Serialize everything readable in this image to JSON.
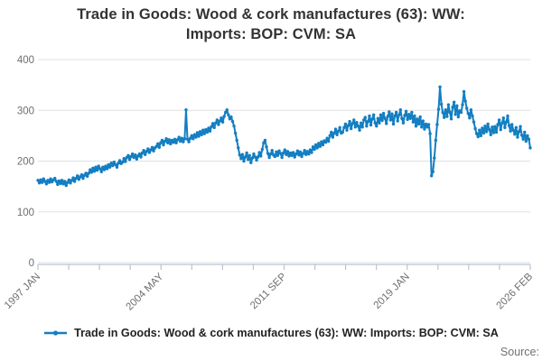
{
  "title": {
    "line1": "Trade in Goods: Wood & cork manufactures (63): WW:",
    "line2": "Imports: BOP: CVM: SA",
    "full": "Trade in Goods: Wood & cork manufactures (63): WW: Imports: BOP: CVM: SA"
  },
  "legend": {
    "series_label": "Trade in Goods: Wood & cork manufactures (63): WW: Imports: BOP: CVM: SA",
    "marker": "line-with-dot-marker"
  },
  "source_label": "Source:",
  "colors": {
    "line": "#137ec2",
    "grid": "#e0e0e0",
    "axis": "#b9c3d4",
    "tick_label": "#6e6e6e",
    "title_text": "#333333",
    "legend_text": "#222222",
    "source_text": "#707070"
  },
  "axes": {
    "y": {
      "ticks": [
        0,
        100,
        200,
        300,
        400
      ],
      "max": 400,
      "grid": true
    },
    "x": {
      "tick_count": 17,
      "labeled_every": 4,
      "labels": [
        "1997 JAN",
        "2004 MAY",
        "2011 SEP",
        "2019 JAN",
        "2026 FEB"
      ],
      "label_rotation_deg": -45
    }
  },
  "chart_data": {
    "type": "line",
    "title": "Trade in Goods: Wood & cork manufactures (63): WW: Imports: BOP: CVM: SA",
    "xlabel": "",
    "ylabel": "",
    "ylim": [
      0,
      400
    ],
    "x_start": "1997-01",
    "x_end": "2026-02",
    "frequency": "monthly",
    "x_tick_labels": [
      "1997 JAN",
      "2004 MAY",
      "2011 SEP",
      "2019 JAN",
      "2026 FEB"
    ],
    "legend_position": "bottom",
    "grid": "horizontal-only",
    "marker": "point",
    "values_by_year": [
      {
        "year": 1997,
        "values": [
          162,
          157,
          163,
          158,
          165,
          160,
          155,
          162,
          158,
          165,
          159,
          163
        ]
      },
      {
        "year": 1998,
        "values": [
          166,
          160,
          154,
          161,
          156,
          162,
          155,
          160,
          152,
          158,
          163,
          157
        ]
      },
      {
        "year": 1999,
        "values": [
          162,
          167,
          160,
          166,
          171,
          164,
          169,
          173,
          166,
          172,
          176,
          170
        ]
      },
      {
        "year": 2000,
        "values": [
          176,
          183,
          178,
          186,
          180,
          188,
          182,
          190,
          185,
          179,
          188,
          183
        ]
      },
      {
        "year": 2001,
        "values": [
          190,
          185,
          193,
          188,
          196,
          191,
          198,
          193,
          188,
          196,
          201,
          195
        ]
      },
      {
        "year": 2002,
        "values": [
          198,
          205,
          199,
          207,
          211,
          203,
          209,
          214,
          207,
          212,
          204,
          210
        ]
      },
      {
        "year": 2003,
        "values": [
          214,
          208,
          216,
          221,
          213,
          219,
          224,
          217,
          222,
          227,
          220,
          226
        ]
      },
      {
        "year": 2004,
        "values": [
          229,
          234,
          227,
          236,
          241,
          232,
          239,
          244,
          236,
          242,
          234,
          241
        ]
      },
      {
        "year": 2005,
        "values": [
          237,
          243,
          236,
          242,
          247,
          239,
          245,
          238,
          244,
          301,
          243,
          238
        ]
      },
      {
        "year": 2006,
        "values": [
          245,
          250,
          244,
          252,
          247,
          256,
          249,
          258,
          252,
          261,
          254,
          262
        ]
      },
      {
        "year": 2007,
        "values": [
          257,
          265,
          259,
          268,
          274,
          266,
          275,
          281,
          272,
          279,
          285,
          277
        ]
      },
      {
        "year": 2008,
        "values": [
          288,
          296,
          301,
          291,
          283,
          287,
          278,
          269,
          255,
          241,
          226,
          212
        ]
      },
      {
        "year": 2009,
        "values": [
          205,
          213,
          200,
          208,
          216,
          203,
          211,
          197,
          206,
          214,
          208,
          202
        ]
      },
      {
        "year": 2010,
        "values": [
          208,
          217,
          210,
          223,
          236,
          241,
          228,
          215,
          207,
          214,
          221,
          212
        ]
      },
      {
        "year": 2011,
        "values": [
          209,
          218,
          211,
          220,
          215,
          207,
          216,
          222,
          213,
          219,
          210,
          216
        ]
      },
      {
        "year": 2012,
        "values": [
          211,
          217,
          208,
          214,
          220,
          212,
          218,
          209,
          215,
          221,
          213,
          219
        ]
      },
      {
        "year": 2013,
        "values": [
          214,
          222,
          217,
          228,
          223,
          232,
          226,
          235,
          229,
          238,
          232,
          240
        ]
      },
      {
        "year": 2014,
        "values": [
          237,
          245,
          239,
          250,
          257,
          247,
          255,
          263,
          252,
          259,
          266,
          255
        ]
      },
      {
        "year": 2015,
        "values": [
          257,
          266,
          273,
          261,
          270,
          278,
          264,
          274,
          281,
          267,
          276,
          269
        ]
      },
      {
        "year": 2016,
        "values": [
          261,
          275,
          267,
          281,
          286,
          269,
          278,
          289,
          271,
          283,
          291,
          275
        ]
      },
      {
        "year": 2017,
        "values": [
          269,
          284,
          275,
          291,
          280,
          294,
          284,
          274,
          288,
          297,
          281,
          293
        ]
      },
      {
        "year": 2018,
        "values": [
          273,
          289,
          296,
          279,
          291,
          301,
          284,
          275,
          290,
          298,
          282,
          292
        ]
      },
      {
        "year": 2019,
        "values": [
          284,
          296,
          277,
          289,
          269,
          283,
          273,
          287,
          267,
          279,
          263,
          273
        ]
      },
      {
        "year": 2020,
        "values": [
          267,
          272,
          254,
          171,
          179,
          206,
          241,
          272,
          302,
          346,
          312,
          296
        ]
      },
      {
        "year": 2021,
        "values": [
          286,
          301,
          288,
          311,
          296,
          283,
          306,
          316,
          292,
          309,
          287,
          299
        ]
      },
      {
        "year": 2022,
        "values": [
          296,
          311,
          337,
          318,
          304,
          294,
          285,
          301,
          289,
          277,
          264,
          254
        ]
      },
      {
        "year": 2023,
        "values": [
          248,
          261,
          250,
          265,
          255,
          269,
          258,
          273,
          262,
          252,
          267,
          256
        ]
      },
      {
        "year": 2024,
        "values": [
          268,
          257,
          272,
          281,
          262,
          275,
          285,
          266,
          277,
          289,
          270,
          259
        ]
      },
      {
        "year": 2025,
        "values": [
          272,
          261,
          253,
          266,
          247,
          258,
          268,
          251,
          243,
          257,
          239,
          250
        ]
      },
      {
        "year": 2026,
        "values": [
          243,
          226
        ]
      }
    ]
  }
}
